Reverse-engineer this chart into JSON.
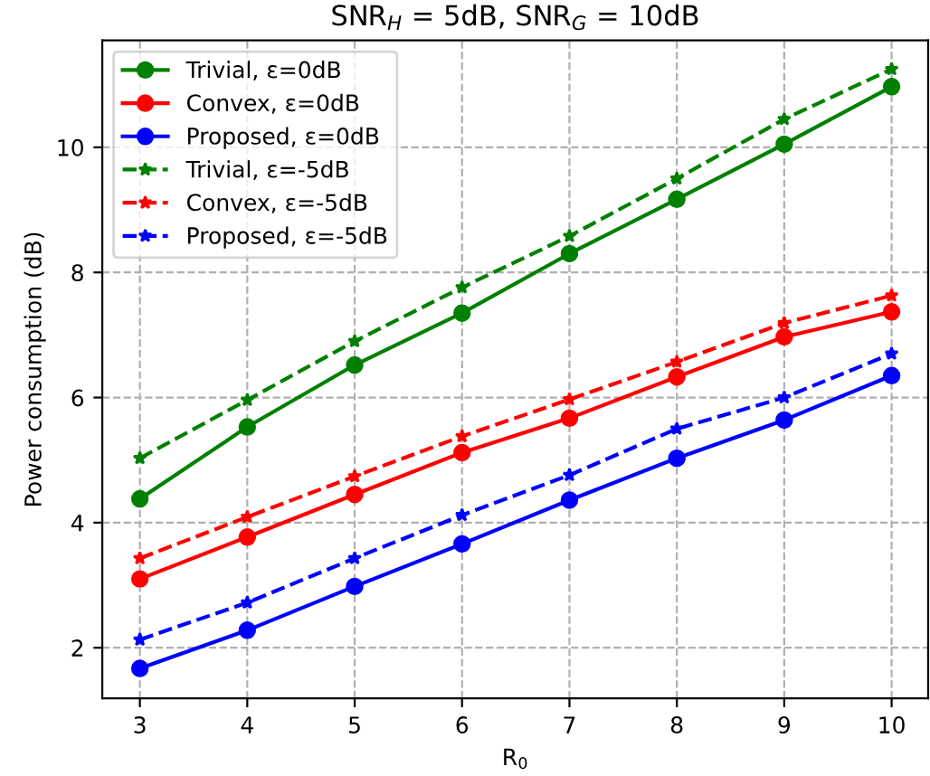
{
  "chart_data": {
    "type": "line",
    "title": "SNR$_{H}$ = 5dB, SNR$_{G}$ = 10dB",
    "xlabel": "R$_{0}$",
    "ylabel": "Power consumption (dB)",
    "x": [
      3,
      4,
      5,
      6,
      7,
      8,
      9,
      10
    ],
    "xlim": [
      2.65,
      10.34
    ],
    "xticks": [
      3,
      4,
      5,
      6,
      7,
      8,
      9,
      10
    ],
    "ylim": [
      1.19,
      11.71
    ],
    "yticks": [
      2,
      4,
      6,
      8,
      10
    ],
    "grid": true,
    "legend": "top left",
    "series": [
      {
        "name": "Trivial, ε=0dB",
        "color": "#008000",
        "marker": "circle",
        "line_style": "solid",
        "values": [
          4.38,
          5.53,
          6.52,
          7.35,
          8.3,
          9.17,
          10.05,
          10.97
        ]
      },
      {
        "name": "Convex, ε=0dB",
        "color": "#ff0000",
        "marker": "circle",
        "line_style": "solid",
        "values": [
          3.1,
          3.77,
          4.45,
          5.12,
          5.67,
          6.33,
          6.97,
          7.37
        ]
      },
      {
        "name": "Proposed, ε=0dB",
        "color": "#0000ff",
        "marker": "circle",
        "line_style": "solid",
        "values": [
          1.67,
          2.28,
          2.98,
          3.66,
          4.36,
          5.03,
          5.64,
          6.35
        ]
      },
      {
        "name": "Trivial, ε=-5dB",
        "color": "#008000",
        "marker": "star",
        "line_style": "dashed",
        "values": [
          5.03,
          5.96,
          6.9,
          7.76,
          8.58,
          9.5,
          10.45,
          11.25
        ]
      },
      {
        "name": "Convex, ε=-5dB",
        "color": "#ff0000",
        "marker": "star",
        "line_style": "dashed",
        "values": [
          3.43,
          4.09,
          4.74,
          5.38,
          5.97,
          6.57,
          7.19,
          7.63
        ]
      },
      {
        "name": "Proposed, ε=-5dB",
        "color": "#0000ff",
        "marker": "star",
        "line_style": "dashed",
        "values": [
          2.13,
          2.72,
          3.43,
          4.12,
          4.76,
          5.5,
          6.0,
          6.7
        ]
      }
    ]
  }
}
